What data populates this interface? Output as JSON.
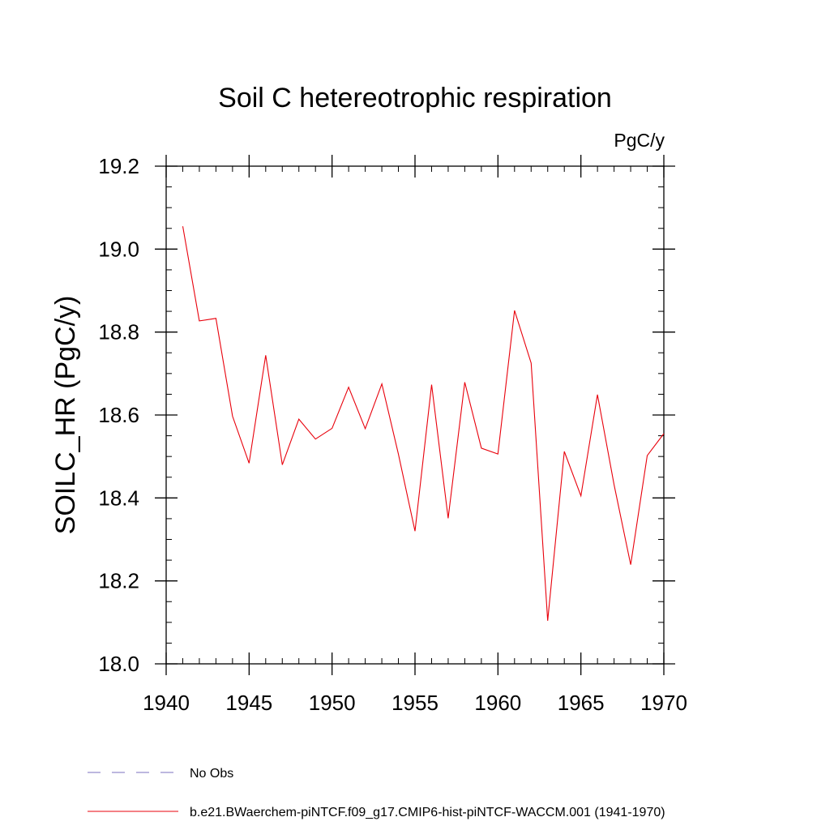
{
  "chart_data": {
    "type": "line",
    "title": "Soil C hetereotrophic respiration",
    "units_label": "PgC/y",
    "ylabel": "SOILC_HR  (PgC/y)",
    "xlabel": "",
    "xlim": [
      1940,
      1970
    ],
    "ylim": [
      18.0,
      19.2
    ],
    "x_ticks": [
      1940,
      1945,
      1950,
      1955,
      1960,
      1965,
      1970
    ],
    "x_tick_labels": [
      "1940",
      "1945",
      "1950",
      "1955",
      "1960",
      "1965",
      "1970"
    ],
    "y_ticks": [
      18.0,
      18.2,
      18.4,
      18.6,
      18.8,
      19.0,
      19.2
    ],
    "y_tick_labels": [
      "18.0",
      "18.2",
      "18.4",
      "18.6",
      "18.8",
      "19.0",
      "19.2"
    ],
    "grid": false,
    "legend_placement": "bottom-left",
    "series": [
      {
        "name": "b.e21.BWaerchem-piNTCF.f09_g17.CMIP6-hist-piNTCF-WACCM.001 (1941-1970)",
        "color": "#e8000b",
        "style": "solid",
        "x": [
          1941,
          1942,
          1943,
          1944,
          1945,
          1946,
          1947,
          1948,
          1949,
          1950,
          1951,
          1952,
          1953,
          1954,
          1955,
          1956,
          1957,
          1958,
          1959,
          1960,
          1961,
          1962,
          1963,
          1964,
          1965,
          1966,
          1967,
          1968,
          1969,
          1970
        ],
        "values": [
          19.055,
          18.827,
          18.833,
          18.597,
          18.484,
          18.744,
          18.48,
          18.59,
          18.542,
          18.568,
          18.667,
          18.567,
          18.675,
          18.506,
          18.32,
          18.673,
          18.351,
          18.679,
          18.52,
          18.506,
          18.852,
          18.725,
          18.104,
          18.512,
          18.405,
          18.649,
          18.432,
          18.239,
          18.502,
          18.555
        ]
      },
      {
        "name": "No Obs",
        "color": "#7b6fbf",
        "style": "dashed",
        "x": [],
        "values": []
      }
    ]
  }
}
